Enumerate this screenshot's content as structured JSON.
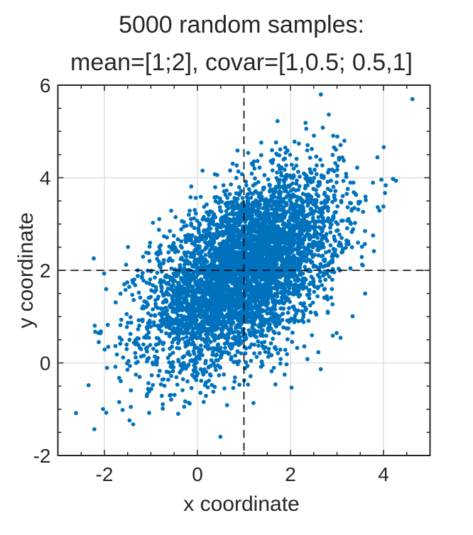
{
  "chart_data": {
    "type": "scatter",
    "title": [
      "5000 random samples:",
      "mean=[1;2], covar=[1,0.5; 0.5,1]"
    ],
    "xlabel": "x coordinate",
    "ylabel": "y coordinate",
    "xlim": [
      -3,
      5
    ],
    "ylim": [
      -2,
      6
    ],
    "xticks": [
      -2,
      0,
      2,
      4
    ],
    "yticks": [
      -2,
      0,
      2,
      4,
      6
    ],
    "xtick_labels": [
      "-2",
      "0",
      "2",
      "4"
    ],
    "ytick_labels": [
      "-2",
      "0",
      "2",
      "4",
      "6"
    ],
    "minor_tick_step": 0.5,
    "grid": true,
    "samples": {
      "n": 5000,
      "mean": [
        1,
        2
      ],
      "covar": [
        [
          1,
          0.5
        ],
        [
          0.5,
          1
        ]
      ],
      "seed": 12345
    },
    "reference_lines": {
      "x": 1,
      "y": 2,
      "style": "dashed"
    },
    "marker_color": "#0072BD"
  }
}
